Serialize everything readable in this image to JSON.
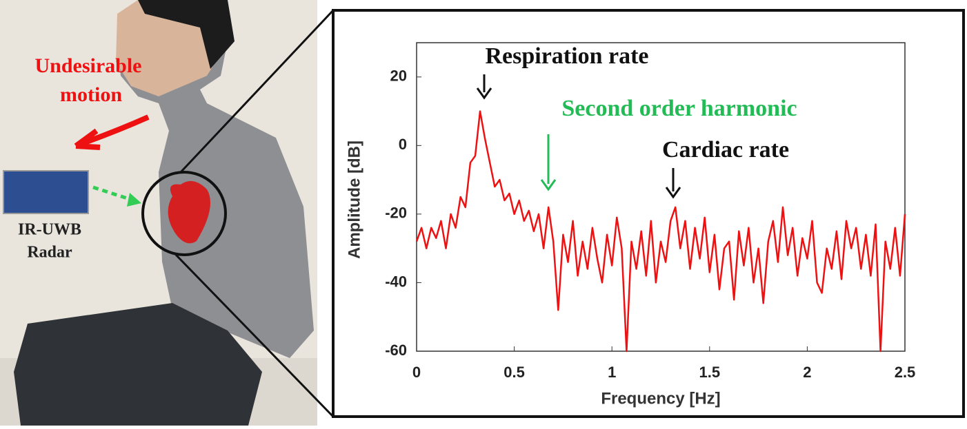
{
  "photo_labels": {
    "motion": [
      "Undesirable",
      "motion"
    ],
    "radar": [
      "IR-UWB",
      "Radar"
    ]
  },
  "chart_data": {
    "type": "line",
    "xlabel": "Frequency [Hz]",
    "ylabel": "Amplitude [dB]",
    "xlim": [
      0,
      2.5
    ],
    "ylim": [
      -60,
      30
    ],
    "xticks": [
      0,
      0.5,
      1,
      1.5,
      2,
      2.5
    ],
    "yticks": [
      -60,
      -40,
      -20,
      0,
      20
    ],
    "annotations": [
      {
        "text": "Respiration rate",
        "color": "#111111"
      },
      {
        "text": "Second order harmonic",
        "color": "#22bb55"
      },
      {
        "text": "Cardiac rate",
        "color": "#111111"
      }
    ],
    "x": [
      0,
      0.025,
      0.05,
      0.075,
      0.1,
      0.125,
      0.15,
      0.175,
      0.2,
      0.225,
      0.25,
      0.275,
      0.3,
      0.325,
      0.35,
      0.375,
      0.4,
      0.425,
      0.45,
      0.475,
      0.5,
      0.525,
      0.55,
      0.575,
      0.6,
      0.625,
      0.65,
      0.675,
      0.7,
      0.725,
      0.75,
      0.775,
      0.8,
      0.825,
      0.85,
      0.875,
      0.9,
      0.925,
      0.95,
      0.975,
      1,
      1.025,
      1.05,
      1.075,
      1.1,
      1.125,
      1.15,
      1.175,
      1.2,
      1.225,
      1.25,
      1.275,
      1.3,
      1.325,
      1.35,
      1.375,
      1.4,
      1.425,
      1.45,
      1.475,
      1.5,
      1.525,
      1.55,
      1.575,
      1.6,
      1.625,
      1.65,
      1.675,
      1.7,
      1.725,
      1.75,
      1.775,
      1.8,
      1.825,
      1.85,
      1.875,
      1.9,
      1.925,
      1.95,
      1.975,
      2,
      2.025,
      2.05,
      2.075,
      2.1,
      2.125,
      2.15,
      2.175,
      2.2,
      2.225,
      2.25,
      2.275,
      2.3,
      2.325,
      2.35,
      2.375,
      2.4,
      2.425,
      2.45,
      2.475,
      2.5
    ],
    "series": [
      {
        "color": "#ee1111",
        "values": [
          -28,
          -24,
          -30,
          -24,
          -27,
          -22,
          -30,
          -20,
          -24,
          -15,
          -18,
          -5,
          -3,
          10,
          2,
          -5,
          -12,
          -10,
          -16,
          -14,
          -20,
          -16,
          -22,
          -19,
          -25,
          -20,
          -30,
          -18,
          -28,
          -48,
          -26,
          -34,
          -22,
          -38,
          -28,
          -36,
          -24,
          -33,
          -40,
          -26,
          -35,
          -21,
          -30,
          -60,
          -28,
          -36,
          -25,
          -38,
          -22,
          -40,
          -28,
          -34,
          -22,
          -18,
          -30,
          -22,
          -36,
          -24,
          -33,
          -21,
          -37,
          -26,
          -42,
          -30,
          -28,
          -45,
          -25,
          -35,
          -24,
          -40,
          -30,
          -46,
          -28,
          -22,
          -34,
          -18,
          -32,
          -24,
          -38,
          -27,
          -33,
          -22,
          -40,
          -43,
          -30,
          -36,
          -25,
          -39,
          -22,
          -30,
          -24,
          -36,
          -26,
          -38,
          -23,
          -60,
          -28,
          -36,
          -24,
          -38,
          -20
        ]
      }
    ]
  }
}
